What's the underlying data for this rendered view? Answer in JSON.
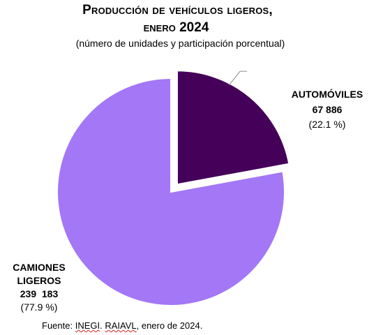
{
  "header": {
    "title_line1": "Producción de vehículos ligeros,",
    "title_line2": "enero 2024",
    "subtitle": "(número de unidades y participación porcentual)"
  },
  "chart_data": {
    "type": "pie",
    "title": "Producción de vehículos ligeros, enero 2024",
    "subtitle": "(número de unidades y participación porcentual)",
    "slices": [
      {
        "name": "AUTOMÓVILES",
        "value": 67886,
        "value_label": "67 886",
        "percent": 22.1,
        "percent_label": "(22.1 %)",
        "color": "#45005a",
        "exploded": true
      },
      {
        "name_line1": "CAMIONES",
        "name_line2": "LIGEROS",
        "value": 239183,
        "value_label": "239  183",
        "percent": 77.9,
        "percent_label": "(77.9 %)",
        "color": "#a377f6",
        "exploded": false
      }
    ],
    "slice_border_color": "#ffffff",
    "leader_line_color": "#8c8c8c"
  },
  "footer": {
    "source_prefix": "Fuente: ",
    "source_org1": "INEGI",
    "source_sep": ". ",
    "source_org2": "RAIAVL",
    "source_suffix": ", enero de 2024."
  }
}
